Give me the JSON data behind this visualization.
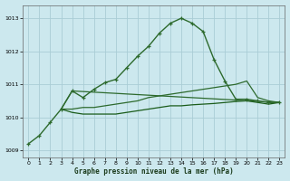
{
  "xlabel": "Graphe pression niveau de la mer (hPa)",
  "background_color": "#cce8ee",
  "grid_color": "#aacdd6",
  "xlim": [
    -0.5,
    23.5
  ],
  "ylim": [
    1008.8,
    1013.4
  ],
  "yticks": [
    1009,
    1010,
    1011,
    1012,
    1013
  ],
  "xticks": [
    0,
    1,
    2,
    3,
    4,
    5,
    6,
    7,
    8,
    9,
    10,
    11,
    12,
    13,
    14,
    15,
    16,
    17,
    18,
    19,
    20,
    21,
    22,
    23
  ],
  "series": [
    {
      "x": [
        0,
        1,
        2,
        3,
        4,
        5,
        6,
        7,
        8,
        9,
        10,
        11,
        12,
        13,
        14,
        15,
        16,
        17,
        18,
        19,
        20,
        21,
        22,
        23
      ],
      "y": [
        1009.2,
        1009.45,
        1009.85,
        1010.25,
        1010.8,
        1010.6,
        1010.85,
        1011.05,
        1011.15,
        1011.5,
        1011.85,
        1012.15,
        1012.55,
        1012.85,
        1013.0,
        1012.85,
        1012.6,
        1011.75,
        1011.1,
        1010.55,
        1010.55,
        1010.5,
        1010.45,
        1010.45
      ],
      "color": "#2d6a2d",
      "linewidth": 1.0,
      "marker": "+"
    },
    {
      "x": [
        3,
        4,
        5,
        6,
        7,
        8,
        9,
        10,
        11,
        12,
        13,
        14,
        15,
        16,
        17,
        18,
        19,
        20,
        21,
        22,
        23
      ],
      "y": [
        1010.25,
        1010.25,
        1010.3,
        1010.3,
        1010.35,
        1010.4,
        1010.45,
        1010.5,
        1010.6,
        1010.65,
        1010.7,
        1010.75,
        1010.8,
        1010.85,
        1010.9,
        1010.95,
        1011.0,
        1011.1,
        1010.6,
        1010.5,
        1010.45
      ],
      "color": "#2d6a2d",
      "linewidth": 0.9,
      "marker": null
    },
    {
      "x": [
        3,
        4,
        5,
        6,
        7,
        8,
        9,
        10,
        11,
        12,
        13,
        14,
        15,
        16,
        17,
        18,
        19,
        20,
        21,
        22,
        23
      ],
      "y": [
        1010.25,
        1010.15,
        1010.1,
        1010.1,
        1010.1,
        1010.1,
        1010.15,
        1010.2,
        1010.25,
        1010.3,
        1010.35,
        1010.35,
        1010.38,
        1010.4,
        1010.42,
        1010.45,
        1010.48,
        1010.5,
        1010.45,
        1010.4,
        1010.45
      ],
      "color": "#1a5c1a",
      "linewidth": 0.9,
      "marker": null
    },
    {
      "x": [
        3,
        4,
        23
      ],
      "y": [
        1010.25,
        1010.8,
        1010.45
      ],
      "color": "#2d6a2d",
      "linewidth": 0.9,
      "marker": null
    }
  ]
}
